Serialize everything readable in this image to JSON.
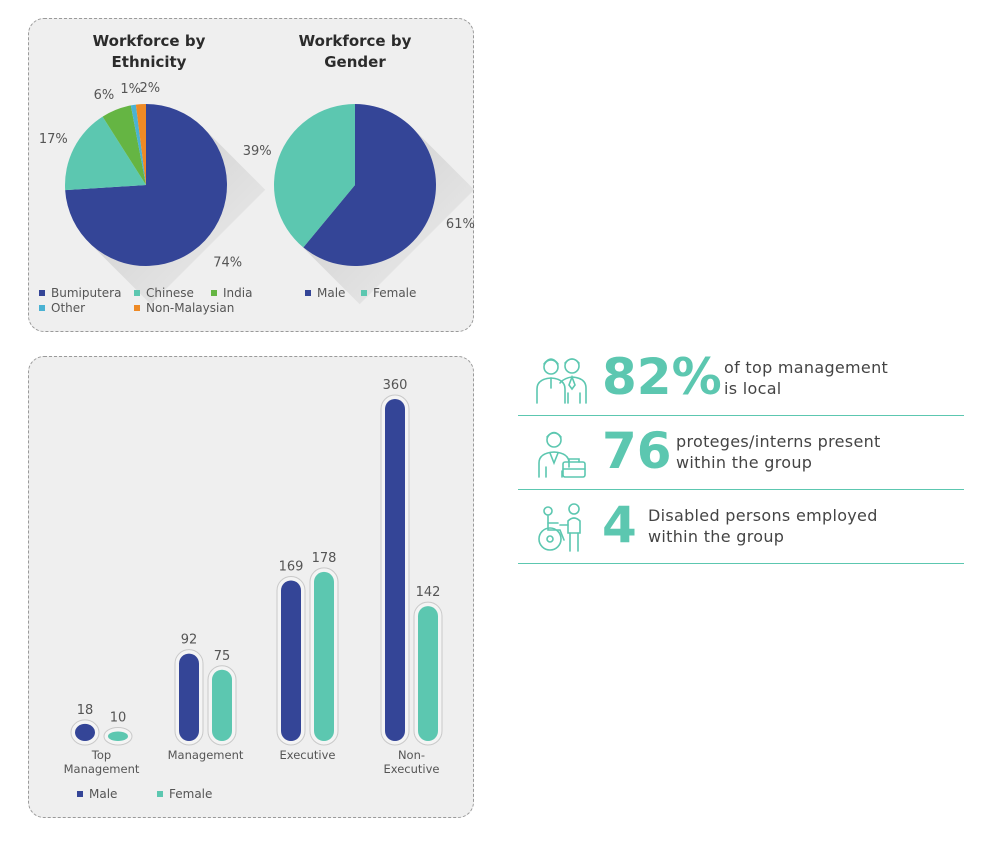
{
  "colors": {
    "bumiputera": "#344597",
    "chinese": "#5cc7b0",
    "india": "#65b543",
    "other": "#4ab2d3",
    "non_malaysian": "#ee8a25",
    "male": "#344597",
    "female": "#5cc7b0",
    "accent": "#5cc7b0"
  },
  "chart_data": [
    {
      "type": "pie",
      "title": [
        "Workforce by",
        "Ethnicity"
      ],
      "labels": [
        "Bumiputera",
        "Chinese",
        "India",
        "Other",
        "Non-Malaysian"
      ],
      "values": [
        74,
        17,
        6,
        1,
        2
      ],
      "value_labels": [
        "74%",
        "17%",
        "6%",
        "1%",
        "2%"
      ],
      "legend": "bottom"
    },
    {
      "type": "pie",
      "title": [
        "Workforce by",
        "Gender"
      ],
      "labels": [
        "Male",
        "Female"
      ],
      "values": [
        61,
        39
      ],
      "value_labels": [
        "61%",
        "39%"
      ],
      "legend": "bottom"
    },
    {
      "type": "bar",
      "categories": [
        [
          "Top",
          "Management"
        ],
        [
          "Management"
        ],
        [
          "Executive"
        ],
        [
          "Non-",
          "Executive"
        ]
      ],
      "series": [
        {
          "name": "Male",
          "values": [
            18,
            92,
            169,
            360
          ]
        },
        {
          "name": "Female",
          "values": [
            10,
            75,
            178,
            142
          ]
        }
      ],
      "legend": "bottom-left"
    }
  ],
  "stats": [
    {
      "big": "82%",
      "text": [
        "of top management",
        "is local"
      ],
      "icon": "two-people-icon"
    },
    {
      "big": "76",
      "text": [
        "proteges/interns present",
        "within the group"
      ],
      "icon": "intern-briefcase-icon"
    },
    {
      "big": "4",
      "text": [
        "Disabled persons employed",
        "within the group"
      ],
      "icon": "wheelchair-assist-icon"
    }
  ]
}
